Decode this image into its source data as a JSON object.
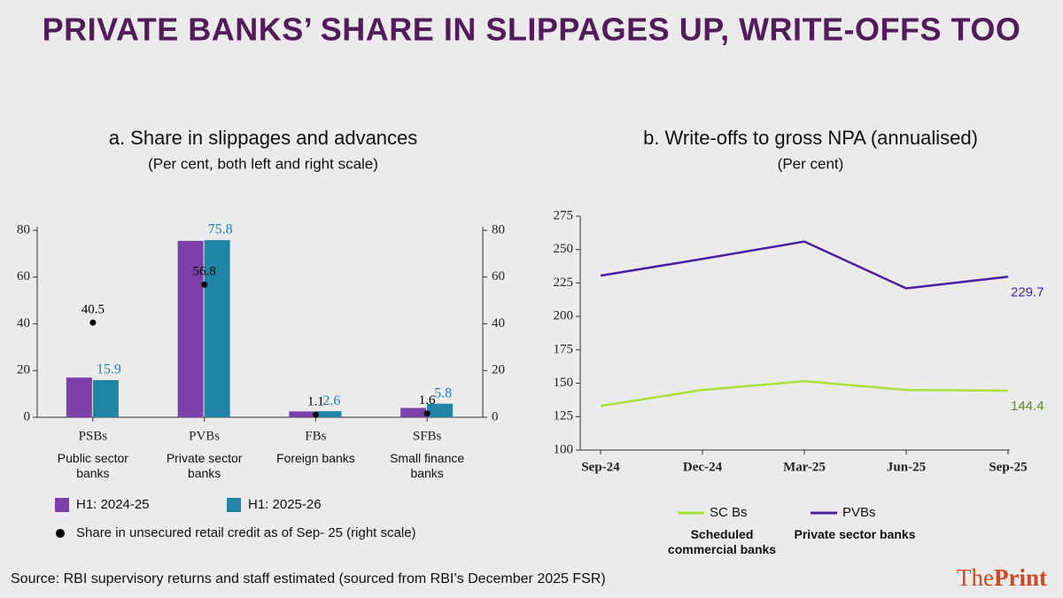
{
  "title": "PRIVATE BANKS’ SHARE IN SLIPPAGES UP, WRITE-OFFS TOO",
  "source": "Source: RBI supervisory returns and staff estimated (sourced from RBI’s December 2025 FSR)",
  "brand": [
    "The",
    "Print"
  ],
  "chart_data": [
    {
      "type": "bar",
      "title": "a. Share in slippages and advances",
      "subtitle": "(Per cent, both left and right scale)",
      "categories": [
        "PSBs",
        "PVBs",
        "FBs",
        "SFBs"
      ],
      "category_descriptions": [
        "Public sector banks",
        "Private sector banks",
        "Foreign banks",
        "Small finance banks"
      ],
      "series": [
        {
          "name": "H1: 2024-25",
          "color": "#7d3fa8",
          "values": [
            17,
            75.5,
            2.5,
            4
          ],
          "labels": false
        },
        {
          "name": "H1: 2025-26",
          "color": "#1f84a6",
          "values": [
            15.9,
            75.8,
            2.6,
            5.8
          ],
          "labels": true
        },
        {
          "name": "Share in unsecured retail credit as of Sep- 25 (right scale)",
          "color": "#000000",
          "marker": "dot",
          "axis": "y2",
          "values": [
            40.5,
            56.8,
            1.1,
            1.6
          ],
          "labels": true
        }
      ],
      "ylim": [
        0,
        80
      ],
      "yticks": [
        0,
        20,
        40,
        60,
        80
      ],
      "y2lim": [
        0,
        80
      ],
      "y2ticks": [
        0,
        20,
        40,
        60,
        80
      ]
    },
    {
      "type": "line",
      "title": "b. Write-offs to gross NPA (annualised)",
      "subtitle": "(Per cent)",
      "categories": [
        "Sep-24",
        "Dec-24",
        "Mar-25",
        "Jun-25",
        "Sep-25"
      ],
      "series": [
        {
          "name": "PVBs",
          "description": "Private sector banks",
          "color": "#4a1fa0",
          "label_color": "#4a1fa0",
          "values": [
            230.5,
            243,
            256,
            221,
            229.7
          ],
          "end_label": true
        },
        {
          "name": "SC Bs",
          "description": "Scheduled commercial banks",
          "color": "#a6e23a",
          "label_color": "#5e8a1e",
          "values": [
            133,
            145,
            151.5,
            145,
            144.4
          ],
          "end_label": true
        }
      ],
      "ylim": [
        100,
        275
      ],
      "yticks": [
        100,
        125,
        150,
        175,
        200,
        225,
        250,
        275
      ]
    }
  ]
}
